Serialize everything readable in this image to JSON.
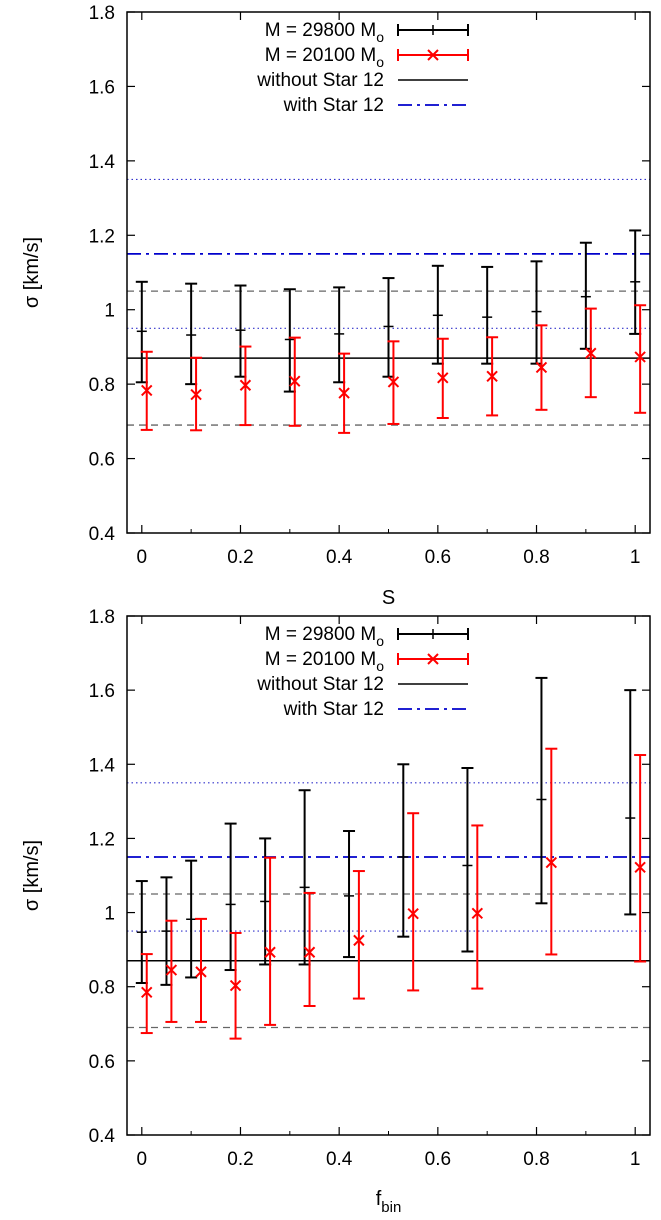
{
  "chart_data": [
    {
      "type": "scatter",
      "xlabel": "S",
      "ylabel": "σ [km/s]",
      "xlim": [
        -0.03,
        1.03
      ],
      "ylim": [
        0.4,
        1.8
      ],
      "xticks": [
        "0",
        "0.2",
        "0.4",
        "0.6",
        "0.8",
        "1"
      ],
      "xtick_values": [
        0,
        0.2,
        0.4,
        0.6,
        0.8,
        1
      ],
      "yticks": [
        "0.4",
        "0.6",
        "0.8",
        "1",
        "1.2",
        "1.4",
        "1.6",
        "1.8"
      ],
      "ytick_values": [
        0.4,
        0.6,
        0.8,
        1,
        1.2,
        1.4,
        1.6,
        1.8
      ],
      "legend": {
        "placement": "top-left",
        "entries": [
          {
            "label": "M = 29800 M",
            "subscript": "o",
            "style": "black-errorbar"
          },
          {
            "label": "M = 20100 M",
            "subscript": "o",
            "style": "red-errorbar-x"
          },
          {
            "label": "without Star 12",
            "style": "black-solid"
          },
          {
            "label": "with Star 12",
            "style": "blue-dashdot"
          }
        ]
      },
      "reference_lines": [
        {
          "name": "without Star 12",
          "y": 0.87,
          "style": "black-solid"
        },
        {
          "name": "with Star 12",
          "y": 1.15,
          "style": "blue-dashdot"
        },
        {
          "y": 0.69,
          "style": "gray-dashed"
        },
        {
          "y": 1.05,
          "style": "gray-dashed"
        },
        {
          "y": 0.95,
          "style": "blue-dotted"
        },
        {
          "y": 1.35,
          "style": "blue-dotted"
        }
      ],
      "series": [
        {
          "name": "M = 29800 M",
          "color": "#000000",
          "marker": "tick",
          "x": [
            0.0,
            0.1,
            0.2,
            0.3,
            0.4,
            0.5,
            0.6,
            0.7,
            0.8,
            0.9,
            1.0
          ],
          "y": [
            0.942,
            0.932,
            0.945,
            0.92,
            0.935,
            0.955,
            0.985,
            0.98,
            0.995,
            1.035,
            1.075
          ],
          "y_low": [
            0.805,
            0.8,
            0.82,
            0.78,
            0.805,
            0.82,
            0.855,
            0.855,
            0.855,
            0.895,
            0.935
          ],
          "y_high": [
            1.075,
            1.07,
            1.065,
            1.055,
            1.06,
            1.085,
            1.118,
            1.115,
            1.13,
            1.18,
            1.213
          ]
        },
        {
          "name": "M = 20100 M",
          "color": "#ff0000",
          "marker": "x",
          "x": [
            0.01,
            0.11,
            0.21,
            0.31,
            0.41,
            0.51,
            0.61,
            0.71,
            0.81,
            0.91,
            1.01
          ],
          "y": [
            0.783,
            0.772,
            0.797,
            0.808,
            0.776,
            0.806,
            0.817,
            0.821,
            0.845,
            0.883,
            0.873
          ],
          "y_low": [
            0.677,
            0.676,
            0.69,
            0.688,
            0.669,
            0.693,
            0.709,
            0.716,
            0.731,
            0.765,
            0.723
          ],
          "y_high": [
            0.887,
            0.871,
            0.901,
            0.925,
            0.882,
            0.915,
            0.922,
            0.926,
            0.958,
            1.003,
            1.012
          ]
        }
      ]
    },
    {
      "type": "scatter",
      "xlabel": "f",
      "xlabel_subscript": "bin",
      "ylabel": "σ [km/s]",
      "xlim": [
        -0.03,
        1.03
      ],
      "ylim": [
        0.4,
        1.8
      ],
      "xticks": [
        "0",
        "0.2",
        "0.4",
        "0.6",
        "0.8",
        "1"
      ],
      "xtick_values": [
        0,
        0.2,
        0.4,
        0.6,
        0.8,
        1
      ],
      "yticks": [
        "0.4",
        "0.6",
        "0.8",
        "1",
        "1.2",
        "1.4",
        "1.6",
        "1.8"
      ],
      "ytick_values": [
        0.4,
        0.6,
        0.8,
        1,
        1.2,
        1.4,
        1.6,
        1.8
      ],
      "legend": {
        "placement": "top-left",
        "entries": [
          {
            "label": "M = 29800 M",
            "subscript": "o",
            "style": "black-errorbar"
          },
          {
            "label": "M = 20100 M",
            "subscript": "o",
            "style": "red-errorbar-x"
          },
          {
            "label": "without Star 12",
            "style": "black-solid"
          },
          {
            "label": "with Star 12",
            "style": "blue-dashdot"
          }
        ]
      },
      "reference_lines": [
        {
          "name": "without Star 12",
          "y": 0.87,
          "style": "black-solid"
        },
        {
          "name": "with Star 12",
          "y": 1.15,
          "style": "blue-dashdot"
        },
        {
          "y": 0.69,
          "style": "gray-dashed"
        },
        {
          "y": 1.05,
          "style": "gray-dashed"
        },
        {
          "y": 0.95,
          "style": "blue-dotted"
        },
        {
          "y": 1.35,
          "style": "blue-dotted"
        }
      ],
      "series": [
        {
          "name": "M = 29800 M",
          "color": "#000000",
          "marker": "tick",
          "x": [
            0.0,
            0.05,
            0.1,
            0.18,
            0.25,
            0.33,
            0.42,
            0.53,
            0.66,
            0.81,
            0.99
          ],
          "y": [
            0.947,
            0.95,
            0.982,
            1.022,
            1.03,
            1.068,
            1.045,
            1.15,
            1.127,
            1.305,
            1.255
          ],
          "y_low": [
            0.81,
            0.805,
            0.825,
            0.845,
            0.86,
            0.86,
            0.88,
            0.935,
            0.895,
            1.025,
            0.995
          ],
          "y_high": [
            1.085,
            1.095,
            1.14,
            1.24,
            1.2,
            1.33,
            1.22,
            1.4,
            1.39,
            1.633,
            1.6
          ]
        },
        {
          "name": "M = 20100 M",
          "color": "#ff0000",
          "marker": "x",
          "x": [
            0.01,
            0.06,
            0.12,
            0.19,
            0.26,
            0.34,
            0.44,
            0.55,
            0.68,
            0.83,
            1.01
          ],
          "y": [
            0.785,
            0.845,
            0.84,
            0.803,
            0.893,
            0.893,
            0.925,
            0.997,
            0.998,
            1.135,
            1.122
          ],
          "y_low": [
            0.675,
            0.705,
            0.705,
            0.66,
            0.697,
            0.748,
            0.768,
            0.79,
            0.795,
            0.887,
            0.868
          ],
          "y_high": [
            0.888,
            0.978,
            0.983,
            0.945,
            1.148,
            1.053,
            1.112,
            1.268,
            1.235,
            1.442,
            1.425
          ]
        }
      ]
    }
  ]
}
